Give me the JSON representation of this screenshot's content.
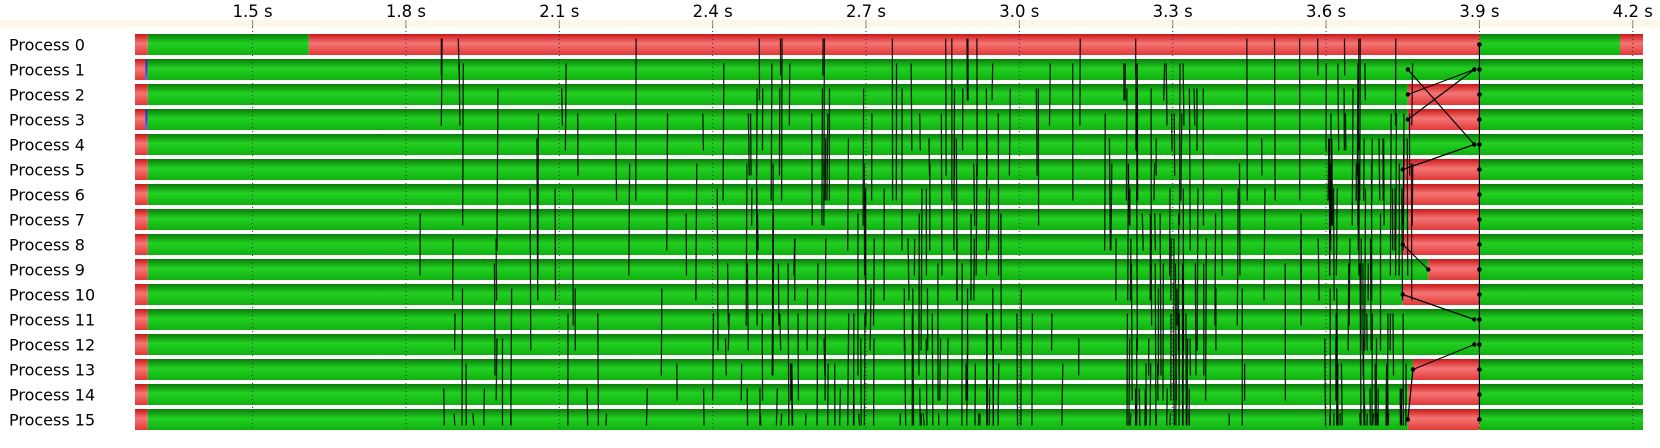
{
  "chart_data": {
    "type": "timeline",
    "x_unit": "s",
    "xlim": [
      1.27,
      4.22
    ],
    "x_ticks": [
      {
        "value": 1.5,
        "label": "1.5 s"
      },
      {
        "value": 1.8,
        "label": "1.8 s"
      },
      {
        "value": 2.1,
        "label": "2.1 s"
      },
      {
        "value": 2.4,
        "label": "2.4 s"
      },
      {
        "value": 2.7,
        "label": "2.7 s"
      },
      {
        "value": 3.0,
        "label": "3.0 s"
      },
      {
        "value": 3.3,
        "label": "3.3 s"
      },
      {
        "value": 3.6,
        "label": "3.6 s"
      },
      {
        "value": 3.9,
        "label": "3.9 s"
      },
      {
        "value": 4.2,
        "label": "4.2 s"
      }
    ],
    "grid": "dotted vertical at ticks",
    "colors": {
      "compute": "#12cc12",
      "wait": "#e8404a",
      "message": "#000000",
      "init": "#5050e0",
      "header": "#fdf8e6"
    },
    "processes": [
      {
        "label": "Process 0",
        "states": [
          {
            "state": "wait",
            "start": 1.27,
            "end": 1.295
          },
          {
            "state": "compute",
            "start": 1.295,
            "end": 1.61
          },
          {
            "state": "wait",
            "start": 1.61,
            "end": 3.9
          },
          {
            "state": "compute",
            "start": 3.9,
            "end": 4.175
          },
          {
            "state": "wait",
            "start": 4.175,
            "end": 4.22
          }
        ]
      },
      {
        "label": "Process 1",
        "states": [
          {
            "state": "wait",
            "start": 1.27,
            "end": 1.29
          },
          {
            "state": "init",
            "start": 1.29,
            "end": 1.295
          },
          {
            "state": "compute",
            "start": 1.295,
            "end": 4.22
          }
        ]
      },
      {
        "label": "Process 2",
        "states": [
          {
            "state": "wait",
            "start": 1.27,
            "end": 1.295
          },
          {
            "state": "compute",
            "start": 1.295,
            "end": 3.76
          },
          {
            "state": "wait",
            "start": 3.76,
            "end": 3.9
          },
          {
            "state": "compute",
            "start": 3.9,
            "end": 4.22
          }
        ]
      },
      {
        "label": "Process 3",
        "states": [
          {
            "state": "wait",
            "start": 1.27,
            "end": 1.29
          },
          {
            "state": "init",
            "start": 1.29,
            "end": 1.295
          },
          {
            "state": "compute",
            "start": 1.295,
            "end": 3.76
          },
          {
            "state": "wait",
            "start": 3.76,
            "end": 3.9
          },
          {
            "state": "compute",
            "start": 3.9,
            "end": 4.22
          }
        ]
      },
      {
        "label": "Process 4",
        "states": [
          {
            "state": "wait",
            "start": 1.27,
            "end": 1.295
          },
          {
            "state": "compute",
            "start": 1.295,
            "end": 4.22
          }
        ]
      },
      {
        "label": "Process 5",
        "states": [
          {
            "state": "wait",
            "start": 1.27,
            "end": 1.295
          },
          {
            "state": "compute",
            "start": 1.295,
            "end": 3.75
          },
          {
            "state": "wait",
            "start": 3.75,
            "end": 3.9
          },
          {
            "state": "compute",
            "start": 3.9,
            "end": 4.22
          }
        ]
      },
      {
        "label": "Process 6",
        "states": [
          {
            "state": "wait",
            "start": 1.27,
            "end": 1.295
          },
          {
            "state": "compute",
            "start": 1.295,
            "end": 3.75
          },
          {
            "state": "wait",
            "start": 3.75,
            "end": 3.9
          },
          {
            "state": "compute",
            "start": 3.9,
            "end": 4.22
          }
        ]
      },
      {
        "label": "Process 7",
        "states": [
          {
            "state": "wait",
            "start": 1.27,
            "end": 1.295
          },
          {
            "state": "compute",
            "start": 1.295,
            "end": 3.76
          },
          {
            "state": "wait",
            "start": 3.76,
            "end": 3.9
          },
          {
            "state": "compute",
            "start": 3.9,
            "end": 4.22
          }
        ]
      },
      {
        "label": "Process 8",
        "states": [
          {
            "state": "wait",
            "start": 1.27,
            "end": 1.295
          },
          {
            "state": "compute",
            "start": 1.295,
            "end": 3.75
          },
          {
            "state": "wait",
            "start": 3.75,
            "end": 3.9
          },
          {
            "state": "compute",
            "start": 3.9,
            "end": 4.22
          }
        ]
      },
      {
        "label": "Process 9",
        "states": [
          {
            "state": "wait",
            "start": 1.27,
            "end": 1.295
          },
          {
            "state": "compute",
            "start": 1.295,
            "end": 3.8
          },
          {
            "state": "wait",
            "start": 3.8,
            "end": 3.9
          },
          {
            "state": "compute",
            "start": 3.9,
            "end": 4.22
          }
        ]
      },
      {
        "label": "Process 10",
        "states": [
          {
            "state": "wait",
            "start": 1.27,
            "end": 1.295
          },
          {
            "state": "compute",
            "start": 1.295,
            "end": 3.75
          },
          {
            "state": "wait",
            "start": 3.75,
            "end": 3.9
          },
          {
            "state": "compute",
            "start": 3.9,
            "end": 4.22
          }
        ]
      },
      {
        "label": "Process 11",
        "states": [
          {
            "state": "wait",
            "start": 1.27,
            "end": 1.295
          },
          {
            "state": "compute",
            "start": 1.295,
            "end": 4.22
          }
        ]
      },
      {
        "label": "Process 12",
        "states": [
          {
            "state": "wait",
            "start": 1.27,
            "end": 1.295
          },
          {
            "state": "compute",
            "start": 1.295,
            "end": 4.22
          }
        ]
      },
      {
        "label": "Process 13",
        "states": [
          {
            "state": "wait",
            "start": 1.27,
            "end": 1.295
          },
          {
            "state": "compute",
            "start": 1.295,
            "end": 3.77
          },
          {
            "state": "wait",
            "start": 3.77,
            "end": 3.9
          },
          {
            "state": "compute",
            "start": 3.9,
            "end": 4.22
          }
        ]
      },
      {
        "label": "Process 14",
        "states": [
          {
            "state": "wait",
            "start": 1.27,
            "end": 1.295
          },
          {
            "state": "compute",
            "start": 1.295,
            "end": 3.76
          },
          {
            "state": "wait",
            "start": 3.76,
            "end": 3.9
          },
          {
            "state": "compute",
            "start": 3.9,
            "end": 4.22
          }
        ]
      },
      {
        "label": "Process 15",
        "states": [
          {
            "state": "wait",
            "start": 1.27,
            "end": 1.295
          },
          {
            "state": "compute",
            "start": 1.295,
            "end": 3.76
          },
          {
            "state": "wait",
            "start": 3.76,
            "end": 3.9
          },
          {
            "state": "compute",
            "start": 3.9,
            "end": 4.22
          }
        ]
      }
    ],
    "messages": [
      {
        "from": 3,
        "to": 1,
        "t0": 3.76,
        "t1": 3.89
      },
      {
        "from": 2,
        "to": 1,
        "t0": 3.76,
        "t1": 3.89
      },
      {
        "from": 1,
        "to": 4,
        "t0": 3.76,
        "t1": 3.89
      },
      {
        "from": 4,
        "to": 5,
        "t0": 3.89,
        "t1": 3.75
      },
      {
        "from": 8,
        "to": 9,
        "t0": 3.75,
        "t1": 3.8
      },
      {
        "from": 10,
        "to": 11,
        "t0": 3.75,
        "t1": 3.89
      },
      {
        "from": 12,
        "to": 13,
        "t0": 3.89,
        "t1": 3.77
      },
      {
        "from": 13,
        "to": 15,
        "t0": 3.77,
        "t1": 3.76
      },
      {
        "from": 0,
        "to": 15,
        "t0": 3.9,
        "t1": 3.9
      }
    ],
    "comm_vertical_lines": {
      "count": 380,
      "t_range": [
        1.82,
        3.77
      ],
      "dense_ranges": [
        [
          2.4,
          2.95
        ],
        [
          3.2,
          3.35
        ],
        [
          3.6,
          3.77
        ]
      ],
      "description_source": "many short black communication edges"
    }
  }
}
